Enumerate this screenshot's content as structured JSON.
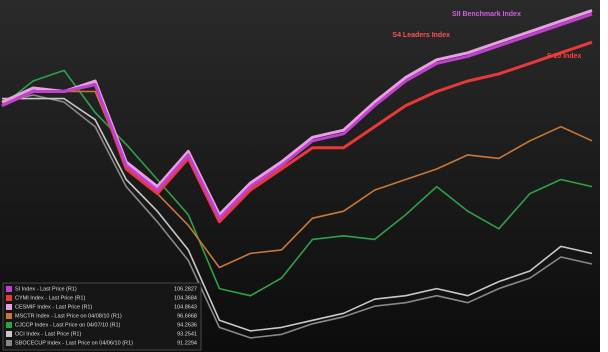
{
  "chart_data": {
    "type": "line",
    "x": [
      0,
      1,
      2,
      3,
      4,
      5,
      6,
      7,
      8,
      9,
      10,
      11,
      12,
      13,
      14,
      15,
      16,
      17,
      18,
      19
    ],
    "xlim": [
      0,
      19
    ],
    "ylim": [
      0,
      100
    ],
    "annotations": [
      {
        "text": "SII Benchmark Index",
        "color": "#d060e0",
        "x": 15.6,
        "y": 96
      },
      {
        "text": "S4 Leaders Index",
        "color": "#ff5050",
        "x": 13.5,
        "y": 90
      },
      {
        "text": "S 10 Index",
        "color": "#ff4040",
        "x": 18.1,
        "y": 84
      }
    ],
    "series": [
      {
        "name": "SI Index - Last Price (R1)",
        "last": 106.2827,
        "color": "#c040d0",
        "values": [
          70,
          74,
          74,
          76,
          53,
          46,
          56,
          38,
          47,
          53,
          60,
          62,
          70,
          77,
          82,
          84,
          87,
          90,
          93,
          96
        ]
      },
      {
        "name": "CYMI Index - Last Price (R1)",
        "last": 104.3684,
        "color": "#e83838",
        "values": [
          70,
          74,
          74,
          76,
          52,
          45,
          55,
          37,
          46,
          52,
          58,
          58,
          64,
          70,
          74,
          77,
          79,
          82,
          85,
          88
        ]
      },
      {
        "name": "CESMIF Index - Last Price (R1)",
        "last": 104.8643,
        "color": "#e8a0e0",
        "values": [
          71,
          75,
          74,
          77,
          54,
          47,
          57,
          39,
          48,
          54,
          61,
          63,
          71,
          78,
          83,
          85,
          88,
          91,
          94,
          97
        ]
      },
      {
        "name": "MSCTR Index - Last Price on 04/08/10 (R1)",
        "last": 96.6668,
        "color": "#c87838",
        "values": [
          70,
          74,
          74,
          74,
          53,
          45,
          36,
          24,
          28,
          29,
          38,
          40,
          46,
          49,
          52,
          56,
          55,
          60,
          64,
          60
        ]
      },
      {
        "name": "CJCCP Index - Last Price on 04/07/10 (R1)",
        "last": 94.2636,
        "color": "#30a048",
        "values": [
          70,
          77,
          80,
          68,
          59,
          49,
          39,
          18,
          16,
          21,
          32,
          33,
          32,
          39,
          47,
          40,
          35,
          45,
          49,
          47
        ]
      },
      {
        "name": "OCI Index - Last Price (R1)",
        "last": 93.2541,
        "color": "#c8c8c8",
        "values": [
          72,
          72,
          72,
          66,
          49,
          40,
          29,
          9,
          6,
          7,
          9,
          11,
          15,
          16,
          18,
          16,
          20,
          23,
          30,
          28
        ]
      },
      {
        "name": "SBOCECUP Index - Last Price on 04/06/10 (R1)",
        "last": 91.2294,
        "color": "#888888",
        "values": [
          71,
          73,
          71,
          64,
          47,
          37,
          26,
          7,
          4,
          5,
          8,
          10,
          13,
          14,
          16,
          14,
          18,
          21,
          27,
          25
        ]
      }
    ]
  }
}
